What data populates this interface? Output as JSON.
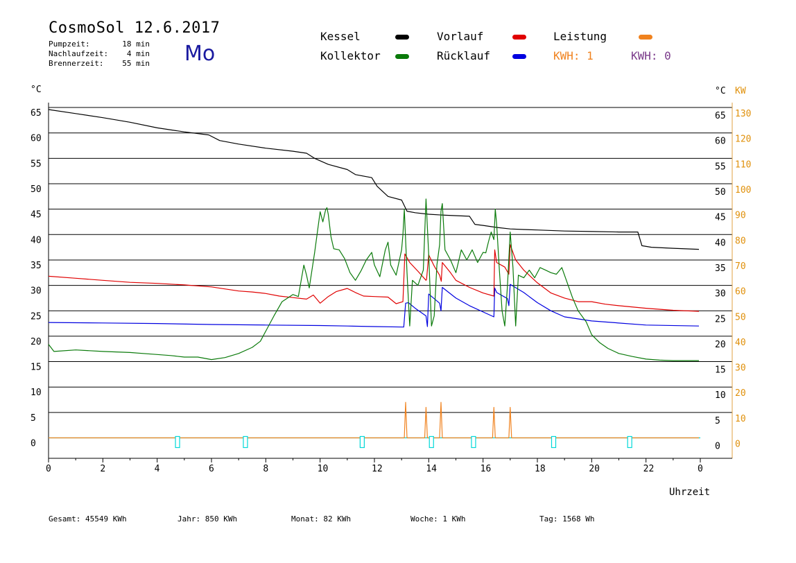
{
  "header": {
    "title": "CosmoSol 12.6.2017",
    "day": "Mo",
    "info": [
      {
        "label": "Pumpzeit:",
        "value": "18 min"
      },
      {
        "label": "Nachlaufzeit:",
        "value": "4 min"
      },
      {
        "label": "Brennerzeit:",
        "value": "55 min"
      }
    ],
    "kwh_1": "KWH: 1",
    "kwh_2": "KWH: 0"
  },
  "legend": {
    "kessel": {
      "label": "Kessel",
      "color": "#000000"
    },
    "vorlauf": {
      "label": "Vorlauf",
      "color": "#e00000"
    },
    "leistung": {
      "label": "Leistung",
      "color": "#f0821e"
    },
    "kollektor": {
      "label": "Kollektor",
      "color": "#0a7a0a"
    },
    "ruecklauf": {
      "label": "Rücklauf",
      "color": "#0000e0"
    }
  },
  "footer": {
    "gesamt": "Gesamt:  45549 KWh",
    "jahr": "Jahr:   850 KWh",
    "monat": "Monat:    82 KWh",
    "woche": "Woche:     1 KWh",
    "tag": "Tag:   1568 Wh"
  },
  "chart_data": {
    "type": "line",
    "ylabel": "°C",
    "y2label": "KW",
    "xlabel": "Uhrzeit",
    "xlim": [
      0,
      24
    ],
    "ylim": [
      -3,
      68
    ],
    "grid": true,
    "x_ticks": [
      "0",
      "2",
      "4",
      "6",
      "8",
      "10",
      "12",
      "14",
      "16",
      "18",
      "20",
      "22",
      "0"
    ],
    "y_ticks": [
      "65",
      "60",
      "55",
      "50",
      "45",
      "40",
      "35",
      "30",
      "25",
      "20",
      "15",
      "10",
      "5",
      "0"
    ],
    "y2_ticks": [
      "130",
      "120",
      "110",
      "100",
      "90",
      "80",
      "70",
      "60",
      "50",
      "40",
      "30",
      "20",
      "10",
      "0"
    ],
    "series": [
      {
        "name": "Kessel",
        "color": "#000000",
        "x": [
          0,
          1,
          2,
          3,
          4,
          5,
          5.9,
          6.3,
          7,
          8,
          9,
          9.5,
          9.8,
          10.3,
          11,
          11.3,
          11.9,
          12.1,
          12.5,
          13,
          13.2,
          13.5,
          14,
          14.6,
          15.5,
          15.7,
          16,
          16.5,
          17,
          17.5,
          18,
          19,
          20,
          21,
          21.7,
          21.85,
          22.2,
          23,
          23.95
        ],
        "y": [
          64.6,
          63.8,
          63,
          62.1,
          61,
          60.2,
          59.6,
          58.5,
          57.8,
          57,
          56.4,
          56,
          55,
          53.8,
          52.8,
          51.8,
          51.2,
          49.5,
          47.5,
          46.8,
          44.6,
          44.3,
          44,
          43.8,
          43.6,
          42,
          41.8,
          41.4,
          41.1,
          41,
          40.9,
          40.7,
          40.6,
          40.5,
          40.5,
          37.8,
          37.5,
          37.3,
          37.1
        ]
      },
      {
        "name": "Vorlauf",
        "color": "#e00000",
        "x": [
          0,
          1,
          2,
          3,
          4,
          5,
          6,
          7,
          7.5,
          8,
          8.5,
          9,
          9.5,
          9.75,
          10,
          10.3,
          10.6,
          11,
          11.3,
          11.6,
          12,
          12.5,
          12.8,
          13.05,
          13.12,
          13.3,
          13.6,
          13.9,
          13.92,
          14,
          14.2,
          14.4,
          14.46,
          14.5,
          14.8,
          15,
          15.5,
          16,
          16.4,
          16.43,
          16.5,
          16.8,
          16.95,
          17,
          17.2,
          17.5,
          18,
          18.5,
          19,
          19.5,
          20,
          20.5,
          21,
          22,
          23,
          23.95
        ],
        "y": [
          31.8,
          31.4,
          31,
          30.6,
          30.4,
          30.1,
          29.7,
          28.9,
          28.7,
          28.4,
          27.9,
          27.6,
          27.3,
          28.1,
          26.5,
          27.8,
          28.8,
          29.4,
          28.6,
          27.9,
          27.8,
          27.7,
          26.4,
          26.8,
          36.2,
          34.5,
          32.8,
          31,
          31.2,
          36,
          33.8,
          32,
          30.8,
          34.5,
          32.5,
          31,
          29.6,
          28.5,
          27.9,
          37,
          34.5,
          33.6,
          32.2,
          38,
          35,
          33,
          30.5,
          28.5,
          27.5,
          26.8,
          26.8,
          26.3,
          26,
          25.5,
          25.1,
          24.9
        ]
      },
      {
        "name": "Rücklauf",
        "color": "#0000e0",
        "x": [
          0,
          2,
          4,
          6,
          8,
          10,
          11,
          12,
          13.08,
          13.15,
          13.25,
          13.5,
          13.9,
          13.95,
          14,
          14.4,
          14.45,
          14.5,
          15,
          15.5,
          16.4,
          16.43,
          16.5,
          16.9,
          16.95,
          17,
          17.5,
          18,
          18.5,
          19,
          20,
          22,
          23.95
        ],
        "y": [
          22.7,
          22.6,
          22.5,
          22.3,
          22.2,
          22.1,
          22,
          21.9,
          21.8,
          26.5,
          26.6,
          25.5,
          24,
          21.9,
          28.3,
          26.5,
          25,
          29.6,
          27.5,
          26,
          23.8,
          29.5,
          28.6,
          27.4,
          26,
          30.2,
          28.6,
          26.6,
          25,
          23.8,
          23,
          22.2,
          22
        ]
      },
      {
        "name": "Kollektor",
        "color": "#0a7a0a",
        "x": [
          0,
          0.2,
          1,
          2,
          3,
          4,
          4.5,
          5,
          5.5,
          6,
          6.5,
          7,
          7.5,
          7.8,
          8,
          8.3,
          8.6,
          9,
          9.2,
          9.4,
          9.5,
          9.6,
          9.8,
          10,
          10.1,
          10.2,
          10.25,
          10.3,
          10.4,
          10.5,
          10.7,
          10.9,
          11.1,
          11.3,
          11.5,
          11.7,
          11.9,
          12,
          12.2,
          12.4,
          12.5,
          12.6,
          12.8,
          13,
          13.05,
          13.1,
          13.2,
          13.3,
          13.4,
          13.6,
          13.8,
          13.9,
          14,
          14.1,
          14.2,
          14.3,
          14.4,
          14.45,
          14.5,
          14.6,
          14.8,
          15,
          15.2,
          15.4,
          15.6,
          15.8,
          16,
          16.1,
          16.2,
          16.3,
          16.4,
          16.45,
          16.5,
          16.6,
          16.7,
          16.8,
          16.9,
          17,
          17.1,
          17.2,
          17.3,
          17.5,
          17.7,
          17.9,
          18.1,
          18.3,
          18.5,
          18.7,
          18.9,
          19.1,
          19.3,
          19.5,
          19.8,
          20,
          20.3,
          20.6,
          21,
          21.5,
          22,
          22.5,
          23,
          23.95
        ],
        "y": [
          18.4,
          17,
          17.3,
          17,
          16.8,
          16.4,
          16.2,
          15.9,
          15.9,
          15.4,
          15.8,
          16.6,
          17.8,
          19,
          21,
          24,
          26.8,
          28.2,
          27.8,
          34,
          32,
          29.5,
          36.5,
          44.5,
          42.5,
          44.8,
          45.3,
          44,
          39.6,
          37.2,
          37,
          35.3,
          32.5,
          31,
          32.8,
          35,
          36.5,
          34,
          31.7,
          37,
          38.5,
          34,
          32,
          37,
          40,
          45,
          32.5,
          22,
          31,
          30,
          33,
          47,
          36,
          22,
          24,
          34,
          38,
          44.6,
          46.1,
          37,
          35,
          32.5,
          37,
          35,
          37,
          34.5,
          36.5,
          36.4,
          38.6,
          40.5,
          39,
          45,
          42,
          33,
          25,
          22,
          30,
          40.5,
          33.5,
          22,
          32,
          31.5,
          33,
          31.5,
          33.5,
          33,
          32.5,
          32.2,
          33.5,
          30.5,
          27.5,
          25,
          22.8,
          20.3,
          18.7,
          17.6,
          16.6,
          16,
          15.5,
          15.3,
          15.2,
          15.2
        ]
      },
      {
        "name": "Leistung",
        "color": "#f0821e",
        "x": [
          0,
          13.1,
          13.15,
          13.2,
          13.85,
          13.9,
          13.95,
          14.4,
          14.45,
          14.5,
          16.35,
          16.4,
          16.45,
          16.95,
          17,
          17.05,
          17.1,
          23.95
        ],
        "y": [
          0,
          0,
          7,
          0,
          0,
          6,
          0,
          0,
          7,
          0,
          0,
          6,
          0,
          0,
          6,
          0,
          0,
          0
        ]
      }
    ],
    "markers": {
      "name": "Pumpe",
      "color": "#00d8d8",
      "x": [
        4.75,
        7.25,
        11.55,
        14.1,
        15.65,
        18.6,
        21.4
      ]
    }
  }
}
